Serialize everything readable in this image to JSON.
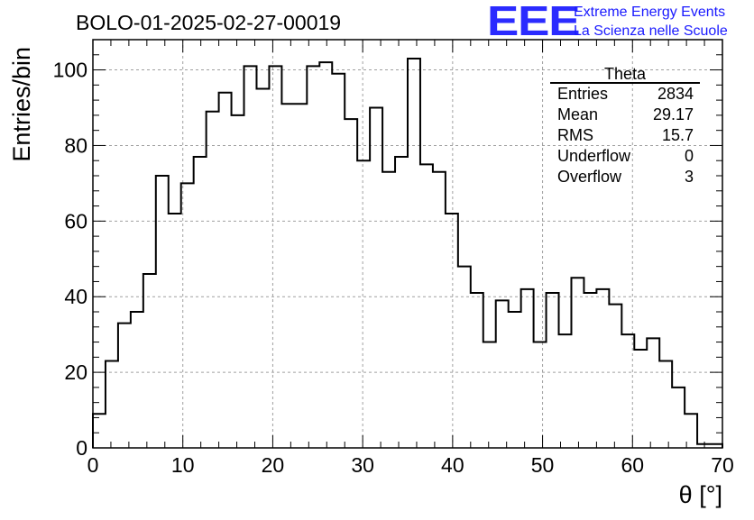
{
  "chart_data": {
    "type": "bar",
    "style": "histogram-step",
    "title": "BOLO-01-2025-02-27-00019",
    "xlabel": "θ [°]",
    "ylabel": "Entries/bin",
    "xlim": [
      0,
      70
    ],
    "ylim": [
      0,
      108
    ],
    "bin_width": 1.4,
    "x_ticks": [
      0,
      10,
      20,
      30,
      40,
      50,
      60,
      70
    ],
    "y_ticks": [
      0,
      20,
      40,
      60,
      80,
      100
    ],
    "grid": true,
    "values": [
      9,
      23,
      33,
      36,
      46,
      72,
      62,
      70,
      77,
      89,
      94,
      88,
      101,
      95,
      101,
      91,
      91,
      101,
      102,
      99,
      87,
      76,
      90,
      73,
      77,
      103,
      75,
      73,
      62,
      48,
      41,
      28,
      39,
      36,
      42,
      28,
      41,
      30,
      45,
      41,
      42,
      38,
      30,
      26,
      29,
      23,
      16,
      9,
      1,
      1
    ]
  },
  "stats": {
    "title": "Theta",
    "rows": [
      {
        "label": "Entries",
        "value": "2834"
      },
      {
        "label": "Mean",
        "value": "29.17"
      },
      {
        "label": "RMS",
        "value": "15.7"
      },
      {
        "label": "Underflow",
        "value": "0"
      },
      {
        "label": "Overflow",
        "value": "3"
      }
    ]
  },
  "logo": {
    "mark": "EEE",
    "line1": "Extreme Energy Events",
    "line2": "La Scienza nelle Scuole"
  },
  "colors": {
    "line": "#000000",
    "grid": "#a0a0a0",
    "logo": "#1a1aff"
  }
}
